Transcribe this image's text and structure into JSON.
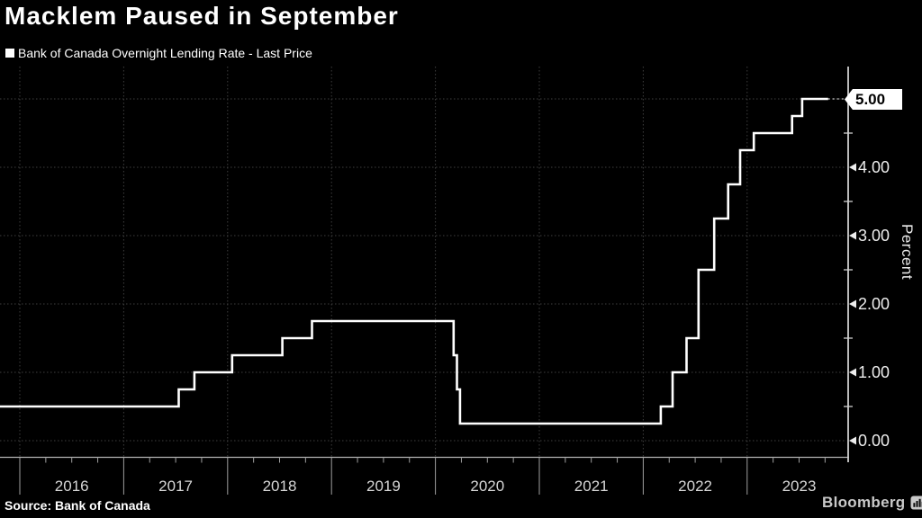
{
  "header": {
    "title": "Macklem Paused in September"
  },
  "legend": {
    "label": "Bank of Canada Overnight Lending Rate - Last Price",
    "marker_color": "#ffffff"
  },
  "footer": {
    "source": "Source: Bank of Canada",
    "brand": "Bloomberg"
  },
  "chart_data": {
    "type": "line",
    "style": "step-after",
    "title": "Macklem Paused in September",
    "ylabel": "Percent",
    "xlabel": "",
    "legend_position": "top-left",
    "grid": "dotted horizontal and vertical",
    "x_year_labels": [
      "2016",
      "2017",
      "2018",
      "2019",
      "2020",
      "2021",
      "2022",
      "2023"
    ],
    "ytick_values": [
      0,
      1,
      2,
      3,
      4,
      5
    ],
    "ytick_labels": [
      "0.00",
      "1.00",
      "2.00",
      "3.00",
      "4.00",
      "5.00"
    ],
    "y_minor_tick_values": [
      0.5,
      1.5,
      2.5,
      3.5,
      4.5
    ],
    "ylim": [
      -0.25,
      5.5
    ],
    "xlim": [
      "2015-10",
      "2024-01"
    ],
    "last_price_label": "5.00",
    "last_value": 5.0,
    "series": [
      {
        "name": "Bank of Canada Overnight Lending Rate - Last Price",
        "color": "#ffffff",
        "points": [
          [
            "2015-10-23",
            0.5
          ],
          [
            "2017-07-12",
            0.75
          ],
          [
            "2017-09-06",
            1.0
          ],
          [
            "2018-01-17",
            1.25
          ],
          [
            "2018-07-11",
            1.5
          ],
          [
            "2018-10-24",
            1.75
          ],
          [
            "2020-03-04",
            1.25
          ],
          [
            "2020-03-16",
            0.75
          ],
          [
            "2020-03-27",
            0.25
          ],
          [
            "2022-03-02",
            0.5
          ],
          [
            "2022-04-13",
            1.0
          ],
          [
            "2022-06-01",
            1.5
          ],
          [
            "2022-07-13",
            2.5
          ],
          [
            "2022-09-07",
            3.25
          ],
          [
            "2022-10-26",
            3.75
          ],
          [
            "2022-12-07",
            4.25
          ],
          [
            "2023-01-25",
            4.5
          ],
          [
            "2023-06-07",
            4.75
          ],
          [
            "2023-07-12",
            5.0
          ],
          [
            "2023-10-12",
            5.0
          ]
        ]
      }
    ],
    "colors": {
      "background": "#000000",
      "line": "#ffffff",
      "grid": "#3e3e3e",
      "axis": "#b3b3b3",
      "axis_right": "#cfcfcf",
      "tick": "#9f9f9f",
      "tick_label": "#ededed",
      "year_label": "#d6d6d6",
      "flag_bg": "#ffffff",
      "flag_text": "#000000"
    }
  }
}
